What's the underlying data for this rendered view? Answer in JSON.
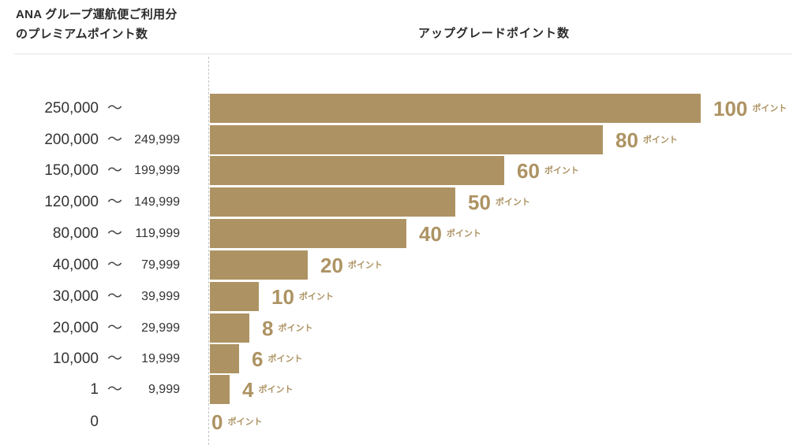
{
  "header": {
    "left_line1": "ANA グループ運航便ご利用分",
    "left_line2": "のプレミアムポイント数",
    "right": "アップグレードポイント数"
  },
  "colors": {
    "bar": "#ad9363",
    "value_text": "#ad9363",
    "label_text": "#333333"
  },
  "unit": "ポイント",
  "rows": [
    {
      "from": "250,000",
      "tilde": "〜",
      "to": "",
      "points": "100"
    },
    {
      "from": "200,000",
      "tilde": "〜",
      "to": "249,999",
      "points": "80"
    },
    {
      "from": "150,000",
      "tilde": "〜",
      "to": "199,999",
      "points": "60"
    },
    {
      "from": "120,000",
      "tilde": "〜",
      "to": "149,999",
      "points": "50"
    },
    {
      "from": "80,000",
      "tilde": "〜",
      "to": "119,999",
      "points": "40"
    },
    {
      "from": "40,000",
      "tilde": "〜",
      "to": "79,999",
      "points": "20"
    },
    {
      "from": "30,000",
      "tilde": "〜",
      "to": "39,999",
      "points": "10"
    },
    {
      "from": "20,000",
      "tilde": "〜",
      "to": "29,999",
      "points": "8"
    },
    {
      "from": "10,000",
      "tilde": "〜",
      "to": "19,999",
      "points": "6"
    },
    {
      "from": "1",
      "tilde": "〜",
      "to": "9,999",
      "points": "4"
    },
    {
      "from": "0",
      "tilde": "",
      "to": "",
      "points": "0"
    }
  ],
  "chart_data": {
    "type": "bar",
    "orientation": "horizontal",
    "title": "アップグレードポイント数",
    "ylabel": "ANA グループ運航便ご利用分のプレミアムポイント数",
    "xlabel": "",
    "categories": [
      "250,000 〜",
      "200,000 〜 249,999",
      "150,000 〜 199,999",
      "120,000 〜 149,999",
      "80,000 〜 119,999",
      "40,000 〜 79,999",
      "30,000 〜 39,999",
      "20,000 〜 29,999",
      "10,000 〜 19,999",
      "1 〜 9,999",
      "0"
    ],
    "values": [
      100,
      80,
      60,
      50,
      40,
      20,
      10,
      8,
      6,
      4,
      0
    ],
    "value_unit": "ポイント",
    "xlim": [
      0,
      100
    ],
    "grid": false,
    "legend": null
  }
}
